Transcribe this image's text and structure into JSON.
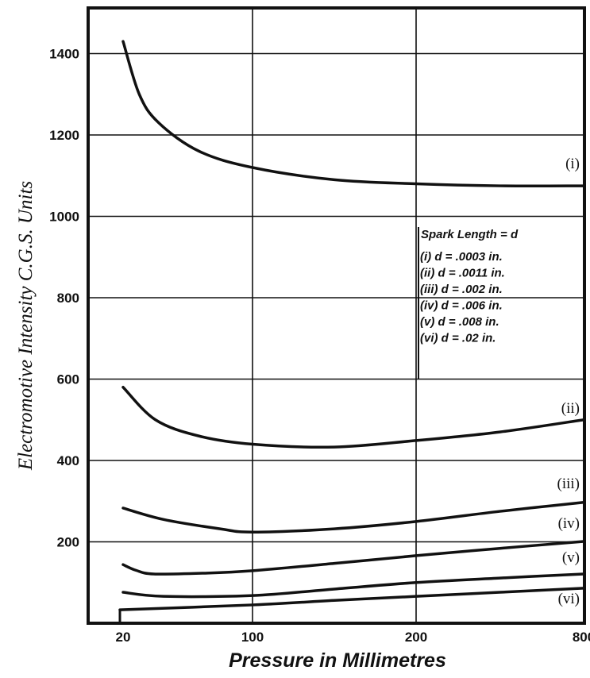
{
  "chart_data": {
    "type": "line",
    "title": "",
    "xlabel": "Pressure in Millimetres",
    "ylabel": "Electromotive Intensity C.G.S. Units",
    "x_ticks": [
      20,
      100,
      200,
      800
    ],
    "x_tick_labels": [
      "20",
      "100",
      "200",
      "800"
    ],
    "y_ticks": [
      200,
      400,
      600,
      800,
      1000,
      1200,
      1400
    ],
    "y_tick_labels": [
      "200",
      "400",
      "600",
      "800",
      "1000",
      "1200",
      "1400"
    ],
    "xlim": [
      12,
      800
    ],
    "ylim": [
      0,
      1510
    ],
    "x_scale": "non-uniform (ticks 20, 100, 200, 800 spaced unevenly)",
    "grid": true,
    "legend": {
      "title": "Spark Length = d",
      "placement": "right",
      "entries": [
        "(i) d = .0003 in.",
        "(ii) d = .0011 in.",
        "(iii) d = .002 in.",
        "(iv) d = .006 in.",
        "(v) d = .008 in.",
        "(vi) d = .02 in."
      ]
    },
    "series": [
      {
        "name": "(i)",
        "x": [
          20,
          30,
          42,
          67,
          100,
          150,
          200,
          500,
          800
        ],
        "y": [
          1430,
          1300,
          1230,
          1160,
          1120,
          1090,
          1080,
          1075,
          1075
        ]
      },
      {
        "name": "(ii)",
        "x": [
          20,
          40,
          67,
          100,
          150,
          200,
          500,
          800
        ],
        "y": [
          580,
          500,
          460,
          440,
          433,
          449,
          470,
          500
        ]
      },
      {
        "name": "(iii)",
        "x": [
          20,
          45,
          80,
          100,
          150,
          200,
          500,
          800
        ],
        "y": [
          283,
          255,
          232,
          224,
          232,
          250,
          275,
          297
        ]
      },
      {
        "name": "(iv)",
        "x": [
          20,
          28,
          39,
          70,
          100,
          150,
          200,
          500,
          800
        ],
        "y": [
          144,
          130,
          121,
          123,
          129,
          147,
          166,
          184,
          201
        ]
      },
      {
        "name": "(v)",
        "x": [
          20,
          45,
          100,
          150,
          200,
          500,
          800
        ],
        "y": [
          76,
          66,
          68,
          84,
          100,
          111,
          121
        ]
      },
      {
        "name": "(vi)",
        "x": [
          18,
          100,
          150,
          200,
          500,
          800
        ],
        "y": [
          33,
          45,
          56,
          66,
          76,
          86
        ]
      }
    ]
  }
}
